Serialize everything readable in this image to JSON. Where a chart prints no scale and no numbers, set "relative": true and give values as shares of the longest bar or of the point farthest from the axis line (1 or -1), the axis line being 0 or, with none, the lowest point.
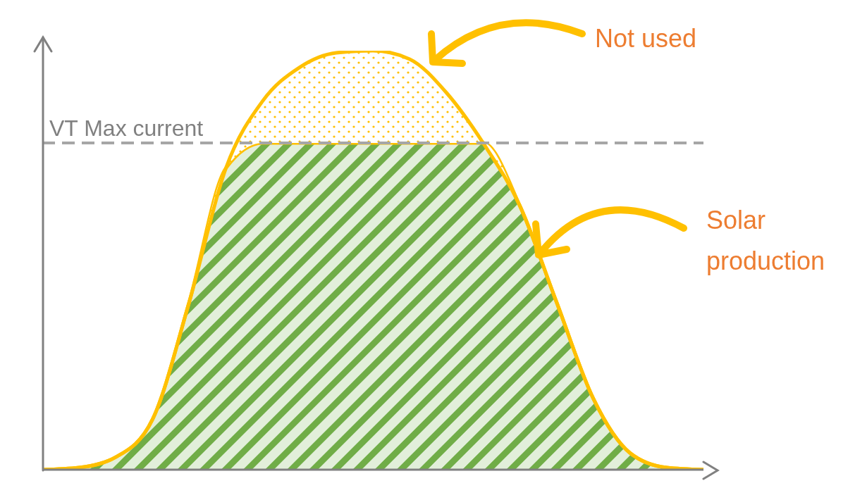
{
  "chart_data": {
    "type": "area",
    "stacked": true,
    "relative": true,
    "tick_labels": false,
    "categories": [
      null,
      null,
      null,
      null,
      null,
      null,
      null,
      null,
      null,
      null,
      null,
      null,
      null,
      null,
      null,
      null,
      null,
      null,
      null
    ],
    "series": [
      {
        "color": "#70ad47",
        "values": [
          0,
          0.005,
          0.03,
          0.12,
          0.4,
          0.72,
          0.78,
          0.78,
          0.78,
          0.78,
          0.78,
          0.78,
          0.78,
          0.63,
          0.4,
          0.17,
          0.04,
          0.005,
          0
        ]
      },
      {
        "color": "#ffc000",
        "values": [
          0,
          0,
          0,
          0,
          0,
          0,
          0.1,
          0.18,
          0.215,
          0.22,
          0.2,
          0.12,
          0,
          0,
          0,
          0,
          0,
          0,
          0
        ]
      }
    ],
    "ref_lines": [
      {
        "axis": "y",
        "value": 0.78,
        "label": "VT Max current",
        "color": "#a6a6a6",
        "line_style": "dashed"
      }
    ],
    "annotations": [
      "Not used",
      "Solar production"
    ]
  }
}
